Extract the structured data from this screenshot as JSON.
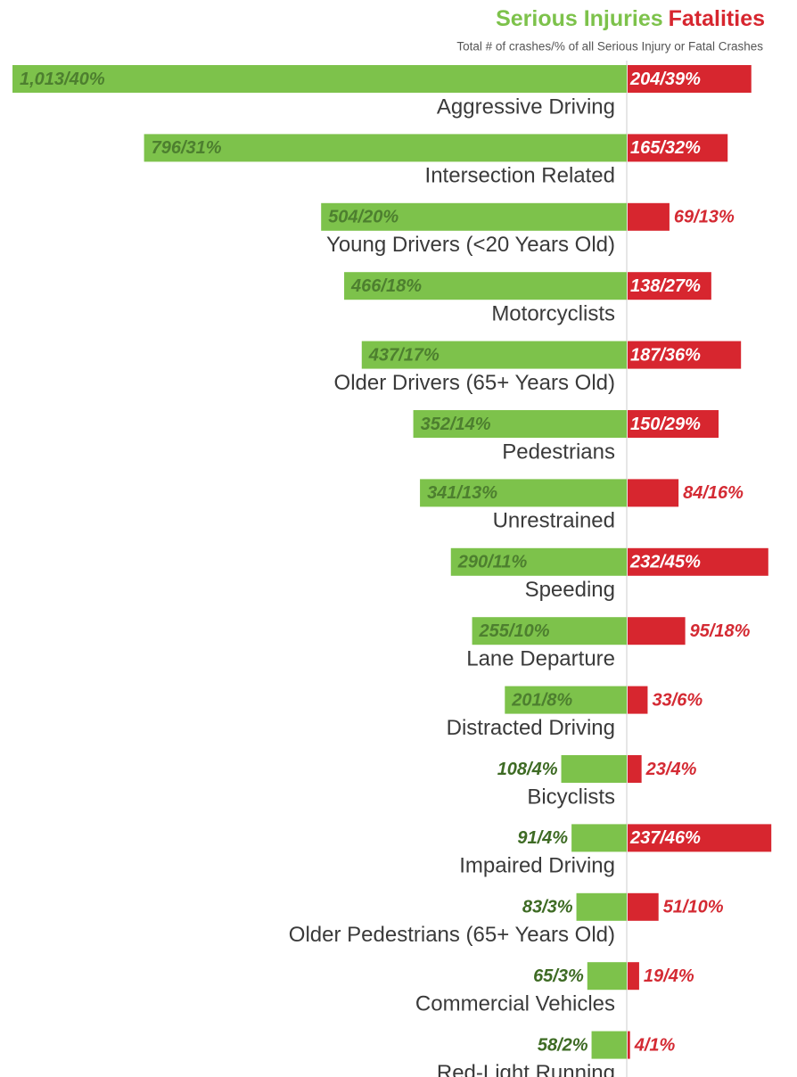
{
  "chart_data": {
    "type": "diverging_bar",
    "title": [
      "Serious Injuries",
      "Fatalities"
    ],
    "subtitle": "Total # of crashes/% of all Serious Injury or Fatal Crashes",
    "categories": [
      "Aggressive Driving",
      "Intersection Related",
      "Young Drivers (<20 Years Old)",
      "Motorcyclists",
      "Older Drivers (65+ Years Old)",
      "Pedestrians",
      "Unrestrained",
      "Speeding",
      "Lane Departure",
      "Distracted Driving",
      "Bicyclists",
      "Impaired Driving",
      "Older Pedestrians (65+ Years Old)",
      "Commercial Vehicles",
      "Red-Light Running"
    ],
    "series": [
      {
        "name": "Serious Injuries",
        "color": "#7dc24b",
        "values": [
          1013,
          796,
          504,
          466,
          437,
          352,
          341,
          290,
          255,
          201,
          108,
          91,
          83,
          65,
          58
        ],
        "value_labels": [
          "1,013/40%",
          "796/31%",
          "504/20%",
          "466/18%",
          "437/17%",
          "352/14%",
          "341/13%",
          "290/11%",
          "255/10%",
          "201/8%",
          "108/4%",
          "91/4%",
          "83/3%",
          "65/3%",
          "58/2%"
        ]
      },
      {
        "name": "Fatalities",
        "color": "#d7262f",
        "values": [
          204,
          165,
          69,
          138,
          187,
          150,
          84,
          232,
          95,
          33,
          23,
          237,
          51,
          19,
          4
        ],
        "value_labels": [
          "204/39%",
          "165/32%",
          "69/13%",
          "138/27%",
          "187/36%",
          "150/29%",
          "84/16%",
          "232/45%",
          "95/18%",
          "33/6%",
          "23/4%",
          "237/46%",
          "51/10%",
          "19/4%",
          "4/1%"
        ]
      }
    ]
  }
}
